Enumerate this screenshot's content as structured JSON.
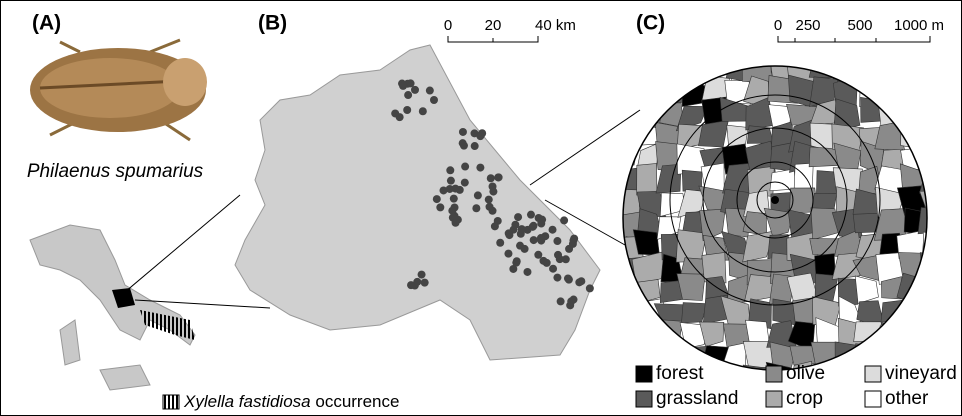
{
  "panels": {
    "a": {
      "label": "(A)",
      "species": "Philaenus spumarius",
      "xylella": {
        "species": "Xylella fastidiosa",
        "text": "occurrence"
      }
    },
    "b": {
      "label": "(B)",
      "scale": [
        "0",
        "20",
        "40 km"
      ]
    },
    "c": {
      "label": "(C)",
      "scale": [
        "0",
        "250",
        "500",
        "1000 m"
      ],
      "legend": [
        {
          "label": "forest",
          "color": "#000000"
        },
        {
          "label": "olive",
          "color": "#8a8a8a"
        },
        {
          "label": "vineyard",
          "color": "#dcdcdc"
        },
        {
          "label": "grassland",
          "color": "#5a5a5a"
        },
        {
          "label": "crop",
          "color": "#ababab"
        },
        {
          "label": "other",
          "color": "#ffffff"
        }
      ]
    }
  }
}
